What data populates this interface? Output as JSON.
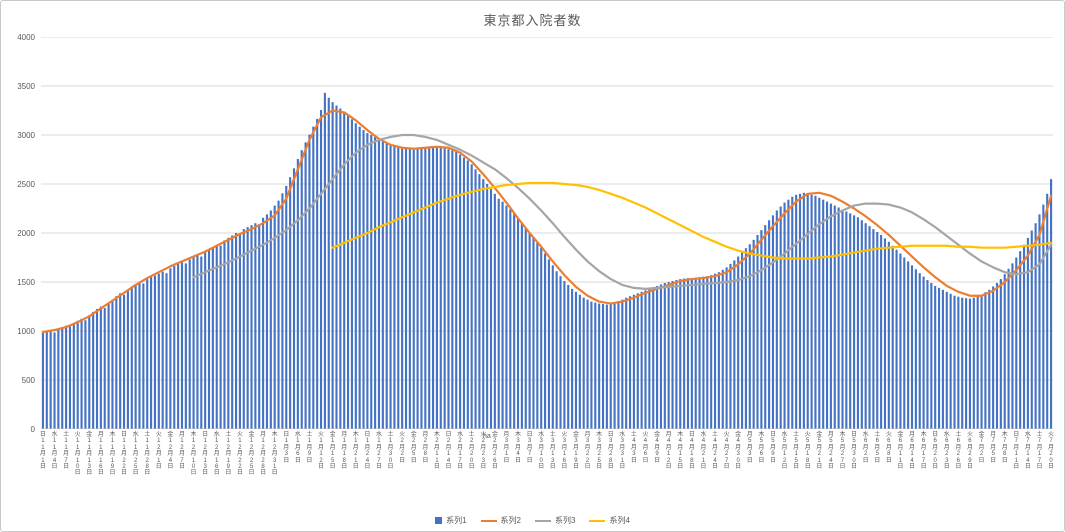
{
  "page": {
    "background": "#ffffff",
    "border_color": "#c9c9c9"
  },
  "chart_data": {
    "type": "bar",
    "title": "東京都入院者数",
    "xlabel": "",
    "ylabel": "",
    "ylim": [
      0,
      4000
    ],
    "y_ticks": [
      0,
      500,
      1000,
      1500,
      2000,
      2500,
      3000,
      3500,
      4000
    ],
    "grid": true,
    "legend_position": "bottom",
    "x_unit": "daily dates from 11月1日 to 7月20日",
    "total_days": 262,
    "x_tick_step_days": 3,
    "stray_text": "ha",
    "x_ticks": [
      [
        "日",
        "11",
        "1"
      ],
      [
        "水",
        "11",
        "4"
      ],
      [
        "土",
        "11",
        "7"
      ],
      [
        "火",
        "11",
        "10"
      ],
      [
        "金",
        "11",
        "13"
      ],
      [
        "月",
        "11",
        "16"
      ],
      [
        "木",
        "11",
        "19"
      ],
      [
        "日",
        "11",
        "22"
      ],
      [
        "水",
        "11",
        "25"
      ],
      [
        "土",
        "11",
        "28"
      ],
      [
        "火",
        "12",
        "1"
      ],
      [
        "金",
        "12",
        "4"
      ],
      [
        "月",
        "12",
        "7"
      ],
      [
        "木",
        "12",
        "10"
      ],
      [
        "日",
        "12",
        "13"
      ],
      [
        "水",
        "12",
        "16"
      ],
      [
        "土",
        "12",
        "19"
      ],
      [
        "火",
        "12",
        "22"
      ],
      [
        "金",
        "12",
        "25"
      ],
      [
        "月",
        "12",
        "28"
      ],
      [
        "木",
        "12",
        "31"
      ],
      [
        "日",
        "1",
        "3"
      ],
      [
        "水",
        "1",
        "6"
      ],
      [
        "土",
        "1",
        "9"
      ],
      [
        "火",
        "1",
        "12"
      ],
      [
        "金",
        "1",
        "15"
      ],
      [
        "月",
        "1",
        "18"
      ],
      [
        "木",
        "1",
        "21"
      ],
      [
        "日",
        "1",
        "24"
      ],
      [
        "水",
        "1",
        "27"
      ],
      [
        "土",
        "1",
        "30"
      ],
      [
        "火",
        "2",
        "2"
      ],
      [
        "金",
        "2",
        "5"
      ],
      [
        "月",
        "2",
        "8"
      ],
      [
        "木",
        "2",
        "11"
      ],
      [
        "日",
        "2",
        "14"
      ],
      [
        "水",
        "2",
        "17"
      ],
      [
        "土",
        "2",
        "20"
      ],
      [
        "火",
        "2",
        "23"
      ],
      [
        "金",
        "2",
        "26"
      ],
      [
        "月",
        "3",
        "1"
      ],
      [
        "木",
        "3",
        "4"
      ],
      [
        "日",
        "3",
        "7"
      ],
      [
        "水",
        "3",
        "10"
      ],
      [
        "土",
        "3",
        "13"
      ],
      [
        "火",
        "3",
        "16"
      ],
      [
        "金",
        "3",
        "19"
      ],
      [
        "月",
        "3",
        "22"
      ],
      [
        "木",
        "3",
        "25"
      ],
      [
        "日",
        "3",
        "28"
      ],
      [
        "水",
        "3",
        "31"
      ],
      [
        "土",
        "4",
        "3"
      ],
      [
        "火",
        "4",
        "6"
      ],
      [
        "金",
        "4",
        "9"
      ],
      [
        "月",
        "4",
        "12"
      ],
      [
        "木",
        "4",
        "15"
      ],
      [
        "日",
        "4",
        "18"
      ],
      [
        "水",
        "4",
        "21"
      ],
      [
        "土",
        "4",
        "24"
      ],
      [
        "火",
        "4",
        "27"
      ],
      [
        "金",
        "4",
        "30"
      ],
      [
        "月",
        "5",
        "3"
      ],
      [
        "木",
        "5",
        "6"
      ],
      [
        "日",
        "5",
        "9"
      ],
      [
        "水",
        "5",
        "12"
      ],
      [
        "土",
        "5",
        "15"
      ],
      [
        "火",
        "5",
        "18"
      ],
      [
        "金",
        "5",
        "21"
      ],
      [
        "月",
        "5",
        "24"
      ],
      [
        "木",
        "5",
        "27"
      ],
      [
        "日",
        "5",
        "30"
      ],
      [
        "水",
        "6",
        "2"
      ],
      [
        "土",
        "6",
        "5"
      ],
      [
        "火",
        "6",
        "8"
      ],
      [
        "金",
        "6",
        "11"
      ],
      [
        "月",
        "6",
        "14"
      ],
      [
        "木",
        "6",
        "17"
      ],
      [
        "日",
        "6",
        "20"
      ],
      [
        "水",
        "6",
        "23"
      ],
      [
        "土",
        "6",
        "26"
      ],
      [
        "火",
        "6",
        "29"
      ],
      [
        "金",
        "7",
        "2"
      ],
      [
        "月",
        "7",
        "5"
      ],
      [
        "木",
        "7",
        "8"
      ],
      [
        "日",
        "7",
        "11"
      ],
      [
        "水",
        "7",
        "14"
      ],
      [
        "土",
        "7",
        "17"
      ],
      [
        "火",
        "7",
        "20"
      ]
    ],
    "series": [
      {
        "name": "系列1",
        "type": "bar",
        "color": "#4472C4",
        "start_day": 0,
        "step_days": 1,
        "values": [
          980,
          995,
          1005,
          985,
          1020,
          1040,
          1055,
          1045,
          1080,
          1105,
          1125,
          1110,
          1160,
          1195,
          1225,
          1250,
          1235,
          1290,
          1320,
          1355,
          1385,
          1370,
          1420,
          1455,
          1480,
          1500,
          1485,
          1530,
          1550,
          1565,
          1585,
          1605,
          1590,
          1640,
          1665,
          1685,
          1700,
          1690,
          1730,
          1750,
          1770,
          1760,
          1805,
          1830,
          1855,
          1880,
          1870,
          1925,
          1950,
          1975,
          2000,
          1990,
          2040,
          2060,
          2080,
          2100,
          2090,
          2155,
          2190,
          2230,
          2280,
          2330,
          2405,
          2480,
          2570,
          2660,
          2755,
          2845,
          2925,
          3005,
          3085,
          3165,
          3255,
          3430,
          3380,
          3335,
          3300,
          3270,
          3240,
          3200,
          3160,
          3120,
          3085,
          3050,
          3020,
          3000,
          2980,
          2960,
          2940,
          2920,
          2905,
          2890,
          2880,
          2870,
          2860,
          2855,
          2850,
          2855,
          2860,
          2870,
          2880,
          2885,
          2880,
          2875,
          2865,
          2855,
          2845,
          2830,
          2800,
          2770,
          2740,
          2700,
          2650,
          2600,
          2550,
          2500,
          2450,
          2400,
          2350,
          2320,
          2280,
          2240,
          2200,
          2150,
          2100,
          2050,
          2000,
          1950,
          1900,
          1850,
          1790,
          1730,
          1670,
          1610,
          1560,
          1510,
          1470,
          1430,
          1400,
          1370,
          1340,
          1320,
          1300,
          1290,
          1280,
          1275,
          1270,
          1280,
          1290,
          1305,
          1320,
          1340,
          1355,
          1370,
          1385,
          1400,
          1415,
          1430,
          1445,
          1460,
          1475,
          1490,
          1500,
          1510,
          1520,
          1530,
          1535,
          1540,
          1540,
          1545,
          1550,
          1555,
          1560,
          1570,
          1585,
          1600,
          1625,
          1650,
          1685,
          1720,
          1760,
          1800,
          1845,
          1885,
          1930,
          1980,
          2030,
          2080,
          2130,
          2180,
          2230,
          2270,
          2310,
          2340,
          2370,
          2390,
          2400,
          2410,
          2400,
          2390,
          2380,
          2360,
          2340,
          2320,
          2300,
          2280,
          2260,
          2240,
          2220,
          2200,
          2180,
          2160,
          2130,
          2100,
          2070,
          2040,
          2010,
          1980,
          1945,
          1910,
          1870,
          1830,
          1790,
          1750,
          1710,
          1670,
          1630,
          1590,
          1555,
          1520,
          1490,
          1460,
          1440,
          1420,
          1400,
          1380,
          1360,
          1350,
          1340,
          1335,
          1330,
          1340,
          1355,
          1370,
          1395,
          1420,
          1455,
          1490,
          1530,
          1580,
          1635,
          1690,
          1750,
          1815,
          1880,
          1950,
          2025,
          2100,
          2190,
          2290,
          2400,
          2550
        ]
      },
      {
        "name": "系列2",
        "type": "line",
        "color": "#ED7D31",
        "start_day": 0,
        "step_days": 3,
        "values": [
          990,
          1010,
          1040,
          1090,
          1150,
          1230,
          1310,
          1390,
          1470,
          1540,
          1600,
          1660,
          1710,
          1760,
          1810,
          1870,
          1930,
          1990,
          2040,
          2100,
          2180,
          2350,
          2650,
          2950,
          3180,
          3250,
          3230,
          3150,
          3050,
          2960,
          2900,
          2870,
          2860,
          2870,
          2880,
          2870,
          2820,
          2730,
          2600,
          2460,
          2310,
          2150,
          2000,
          1860,
          1710,
          1570,
          1450,
          1360,
          1300,
          1280,
          1300,
          1340,
          1390,
          1430,
          1470,
          1510,
          1530,
          1540,
          1560,
          1600,
          1680,
          1790,
          1930,
          2070,
          2200,
          2320,
          2400,
          2410,
          2380,
          2320,
          2250,
          2170,
          2080,
          1980,
          1870,
          1760,
          1650,
          1550,
          1460,
          1400,
          1360,
          1360,
          1410,
          1500,
          1620,
          1770,
          1980,
          2380
        ]
      },
      {
        "name": "系列3",
        "type": "line",
        "color": "#A5A5A5",
        "start_day": 39,
        "step_days": 3,
        "values": [
          1550,
          1600,
          1650,
          1700,
          1760,
          1820,
          1880,
          1950,
          2030,
          2130,
          2250,
          2400,
          2550,
          2700,
          2820,
          2900,
          2950,
          2980,
          3000,
          3000,
          2980,
          2950,
          2900,
          2850,
          2790,
          2720,
          2650,
          2560,
          2460,
          2350,
          2230,
          2100,
          1960,
          1830,
          1710,
          1610,
          1530,
          1470,
          1440,
          1430,
          1440,
          1450,
          1460,
          1470,
          1480,
          1490,
          1500,
          1520,
          1560,
          1620,
          1700,
          1790,
          1890,
          1990,
          2090,
          2170,
          2230,
          2280,
          2300,
          2300,
          2290,
          2260,
          2210,
          2140,
          2060,
          1970,
          1880,
          1790,
          1710,
          1650,
          1600,
          1580,
          1600,
          1680,
          1880
        ]
      },
      {
        "name": "系列4",
        "type": "line",
        "color": "#FFC000",
        "start_day": 75,
        "step_days": 3,
        "values": [
          1850,
          1900,
          1950,
          2000,
          2060,
          2110,
          2160,
          2210,
          2260,
          2310,
          2350,
          2390,
          2420,
          2450,
          2470,
          2490,
          2500,
          2510,
          2510,
          2510,
          2500,
          2490,
          2470,
          2440,
          2400,
          2360,
          2310,
          2260,
          2200,
          2140,
          2080,
          2020,
          1960,
          1910,
          1860,
          1820,
          1790,
          1770,
          1750,
          1740,
          1740,
          1740,
          1750,
          1760,
          1780,
          1800,
          1820,
          1840,
          1850,
          1860,
          1870,
          1870,
          1870,
          1870,
          1860,
          1860,
          1850,
          1850,
          1850,
          1860,
          1870,
          1880,
          1900
        ]
      }
    ],
    "legend": [
      "系列1",
      "系列2",
      "系列3",
      "系列4"
    ]
  }
}
